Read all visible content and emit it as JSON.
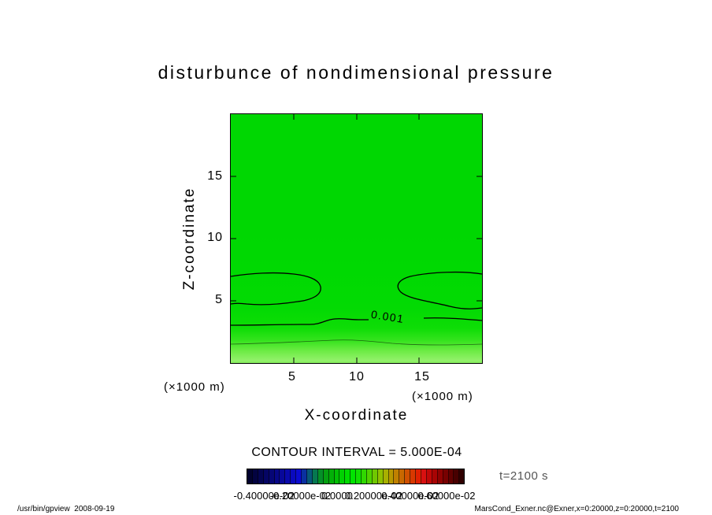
{
  "page": {
    "footer_left": "/usr/bin/gpview  2008-09-19",
    "footer_right": "MarsCond_Exner.nc@Exner,x=0:20000,z=0:20000,t=2100"
  },
  "chart_data": {
    "type": "heatmap",
    "title": "disturbunce  of  nondimensional  pressure",
    "xlabel": "X-coordinate",
    "ylabel": "Z-coordinate",
    "x_unit_label": "(×1000 m)",
    "y_unit_label": "(×1000 m)",
    "x_ticks": [
      5,
      10,
      15
    ],
    "y_ticks": [
      5,
      10,
      15
    ],
    "xlim": [
      0,
      20
    ],
    "ylim": [
      0,
      20
    ],
    "grid": false,
    "contour_interval": 0.0005,
    "contour_interval_text": "CONTOUR INTERVAL = 5.000E-04",
    "labeled_contour": {
      "value": 0.001,
      "text": "0.001"
    },
    "time_label": "t=2100 s",
    "fill_color_main": "#00d702",
    "fill_color_bottom": "#93f16b",
    "colorbar": {
      "position": "bottom",
      "ticks": [
        {
          "label": "-0.40000e-02",
          "pos": 8
        },
        {
          "label": "-0.20000e-02",
          "pos": 24.7
        },
        {
          "label": "0.0000",
          "pos": 41.5
        },
        {
          "label": "0.20000e-02",
          "pos": 58.3
        },
        {
          "label": "0.40000e-02",
          "pos": 75
        },
        {
          "label": "0.60000e-02",
          "pos": 91.7
        }
      ],
      "colors": [
        "#02022e",
        "#030340",
        "#040452",
        "#050564",
        "#060676",
        "#070788",
        "#08089a",
        "#0909ac",
        "#0a0abe",
        "#0b0bd0",
        "#0a30a0",
        "#085878",
        "#067850",
        "#059028",
        "#04a010",
        "#03b008",
        "#02c004",
        "#01d002",
        "#00dc00",
        "#00e400",
        "#10e000",
        "#30d800",
        "#50d000",
        "#70c800",
        "#90c000",
        "#a8b000",
        "#b89800",
        "#c08000",
        "#c86800",
        "#d05000",
        "#d83800",
        "#e02000",
        "#d81010",
        "#c00808",
        "#a80404",
        "#900202",
        "#780101",
        "#600000",
        "#480000",
        "#300000"
      ]
    }
  }
}
